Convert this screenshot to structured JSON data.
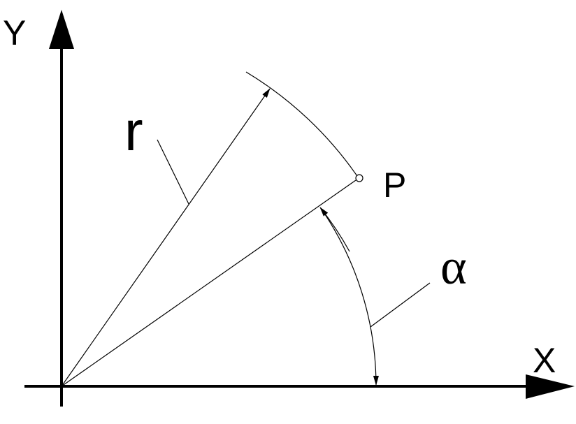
{
  "diagram": {
    "labels": {
      "y_axis": "Y",
      "x_axis": "X",
      "radius": "r",
      "point": "P",
      "angle": "α"
    },
    "colors": {
      "stroke": "#000000",
      "background": "#ffffff"
    }
  }
}
